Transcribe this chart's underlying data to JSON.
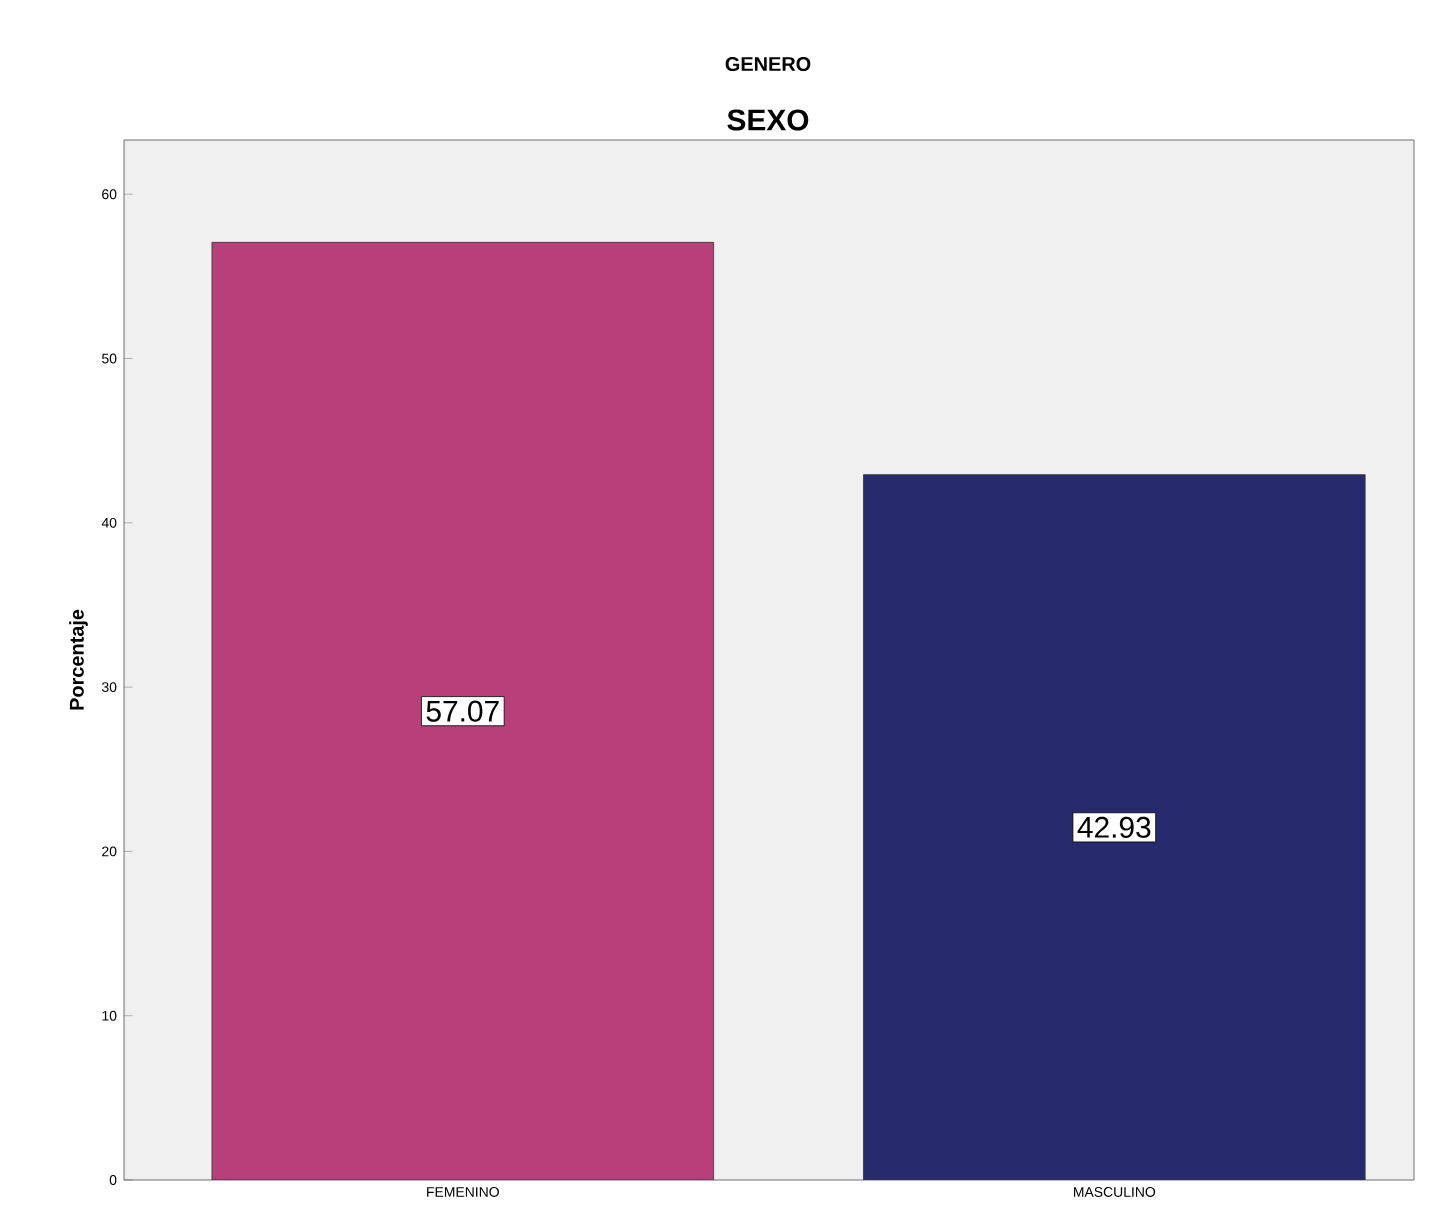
{
  "chart_data": {
    "type": "bar",
    "title": "GENERO",
    "subtitle": "SEXO",
    "ylabel": "Porcentaje",
    "categories": [
      "FEMENINO",
      "MASCULINO"
    ],
    "values": [
      57.07,
      42.93
    ],
    "colors": [
      "#b83f7a",
      "#282a6e"
    ],
    "value_labels": [
      "57.07",
      "42.93"
    ],
    "ylim": [
      0,
      63.3
    ],
    "yticks": [
      0,
      10,
      20,
      30,
      40,
      50,
      60
    ],
    "grid": false
  }
}
